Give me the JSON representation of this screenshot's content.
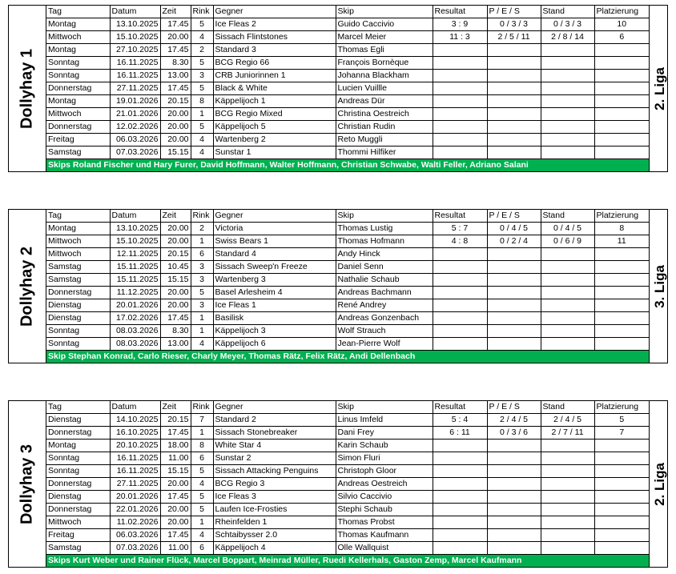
{
  "headers": [
    "Tag",
    "Datum",
    "Zeit",
    "Rink",
    "Gegner",
    "Skip",
    "Resultat",
    "P / E / S",
    "Stand",
    "Platzierung"
  ],
  "teams": [
    {
      "name": "Dollyhay 1",
      "league": "2. Liga",
      "rows": [
        [
          "Montag",
          "13.10.2025",
          "17.45",
          "5",
          "Ice Fleas 2",
          "Guido Caccivio",
          "3 : 9",
          "0 / 3 / 3",
          "0 / 3 / 3",
          "10"
        ],
        [
          "Mittwoch",
          "15.10.2025",
          "20.00",
          "4",
          "Sissach Flintstones",
          "Marcel Meier",
          "11 : 3",
          "2 / 5 / 11",
          "2 / 8 / 14",
          "6"
        ],
        [
          "Montag",
          "27.10.2025",
          "17.45",
          "2",
          "Standard 3",
          "Thomas Egli",
          "",
          "",
          "",
          ""
        ],
        [
          "Sonntag",
          "16.11.2025",
          "8.30",
          "5",
          "BCG Regio 66",
          "François Bornèque",
          "",
          "",
          "",
          ""
        ],
        [
          "Sonntag",
          "16.11.2025",
          "13.00",
          "3",
          "CRB Juniorinnen 1",
          "Johanna Blackham",
          "",
          "",
          "",
          ""
        ],
        [
          "Donnerstag",
          "27.11.2025",
          "17.45",
          "5",
          "Black & White",
          "Lucien Vuillle",
          "",
          "",
          "",
          ""
        ],
        [
          "Montag",
          "19.01.2026",
          "20.15",
          "8",
          "Käppelijoch 1",
          "Andreas Dür",
          "",
          "",
          "",
          ""
        ],
        [
          "Mittwoch",
          "21.01.2026",
          "20.00",
          "1",
          "BCG Regio Mixed",
          "Christina Oestreich",
          "",
          "",
          "",
          ""
        ],
        [
          "Donnerstag",
          "12.02.2026",
          "20.00",
          "5",
          "Käppelijoch 5",
          "Christian Rudin",
          "",
          "",
          "",
          ""
        ],
        [
          "Freitag",
          "06.03.2026",
          "20.00",
          "4",
          "Wartenberg 2",
          "Reto Muggli",
          "",
          "",
          "",
          ""
        ],
        [
          "Samstag",
          "07.03.2026",
          "15.15",
          "4",
          "Sunstar 1",
          "Thommi Hilfiker",
          "",
          "",
          "",
          ""
        ]
      ],
      "skips": "Skips Roland Fischer und Hary Furer, David Hoffmann, Walter Hoffmann, Christian Schwabe, Walti Feller, Adriano Salani"
    },
    {
      "name": "Dollyhay 2",
      "league": "3. Liga",
      "rows": [
        [
          "Montag",
          "13.10.2025",
          "20.00",
          "2",
          "Victoria",
          "Thomas Lustig",
          "5 : 7",
          "0 / 4 / 5",
          "0 / 4 / 5",
          "8"
        ],
        [
          "Mittwoch",
          "15.10.2025",
          "20.00",
          "1",
          "Swiss Bears 1",
          "Thomas Hofmann",
          "4 : 8",
          "0 / 2 / 4",
          "0 / 6 / 9",
          "11"
        ],
        [
          "Mittwoch",
          "12.11.2025",
          "20.15",
          "6",
          "Standard 4",
          "Andy Hinck",
          "",
          "",
          "",
          ""
        ],
        [
          "Samstag",
          "15.11.2025",
          "10.45",
          "3",
          "Sissach Sweep'n Freeze",
          "Daniel Senn",
          "",
          "",
          "",
          ""
        ],
        [
          "Samstag",
          "15.11.2025",
          "15.15",
          "3",
          "Wartenberg 3",
          "Nathalie Schaub",
          "",
          "",
          "",
          ""
        ],
        [
          "Donnerstag",
          "11.12.2025",
          "20.00",
          "5",
          "Basel Arlesheim 4",
          "Andreas Bachmann",
          "",
          "",
          "",
          ""
        ],
        [
          "Dienstag",
          "20.01.2026",
          "20.00",
          "3",
          "Ice Fleas 1",
          "René Andrey",
          "",
          "",
          "",
          ""
        ],
        [
          "Dienstag",
          "17.02.2026",
          "17.45",
          "1",
          "Basilisk",
          "Andreas Gonzenbach",
          "",
          "",
          "",
          ""
        ],
        [
          "Sonntag",
          "08.03.2026",
          "8.30",
          "1",
          "Käppelijoch 3",
          "Wolf Strauch",
          "",
          "",
          "",
          ""
        ],
        [
          "Sonntag",
          "08.03.2026",
          "13.00",
          "4",
          "Käppelijoch 6",
          "Jean-Pierre Wolf",
          "",
          "",
          "",
          ""
        ]
      ],
      "skips": "Skip Stephan Konrad, Carlo Rieser, Charly Meyer, Thomas Rätz, Felix Rätz, Andi Dellenbach"
    },
    {
      "name": "Dollyhay 3",
      "league": "2. Liga",
      "rows": [
        [
          "Dienstag",
          "14.10.2025",
          "20.15",
          "7",
          "Standard 2",
          "Linus Imfeld",
          "5 : 4",
          "2 / 4 / 5",
          "2 / 4 / 5",
          "5"
        ],
        [
          "Donnerstag",
          "16.10.2025",
          "17.45",
          "1",
          "Sissach Stonebreaker",
          "Dani Frey",
          "6 : 11",
          "0 / 3 / 6",
          "2 / 7 / 11",
          "7"
        ],
        [
          "Montag",
          "20.10.2025",
          "18.00",
          "8",
          "White Star 4",
          "Karin Schaub",
          "",
          "",
          "",
          ""
        ],
        [
          "Sonntag",
          "16.11.2025",
          "11.00",
          "6",
          "Sunstar 2",
          "Simon Fluri",
          "",
          "",
          "",
          ""
        ],
        [
          "Sonntag",
          "16.11.2025",
          "15.15",
          "5",
          "Sissach Attacking Penguins",
          "Christoph Gloor",
          "",
          "",
          "",
          ""
        ],
        [
          "Donnerstag",
          "27.11.2025",
          "20.00",
          "4",
          "BCG Regio 3",
          "Andreas Oestreich",
          "",
          "",
          "",
          ""
        ],
        [
          "Dienstag",
          "20.01.2026",
          "17.45",
          "5",
          "Ice Fleas 3",
          "Silvio Caccivio",
          "",
          "",
          "",
          ""
        ],
        [
          "Donnerstag",
          "22.01.2026",
          "20.00",
          "5",
          "Laufen Ice-Frosties",
          "Stephi Schaub",
          "",
          "",
          "",
          ""
        ],
        [
          "Mittwoch",
          "11.02.2026",
          "20.00",
          "1",
          "Rheinfelden 1",
          "Thomas Probst",
          "",
          "",
          "",
          ""
        ],
        [
          "Freitag",
          "06.03.2026",
          "17.45",
          "4",
          "Schtaibysser 2.0",
          "Thomas Kaufmann",
          "",
          "",
          "",
          ""
        ],
        [
          "Samstag",
          "07.03.2026",
          "11.00",
          "6",
          "Käppelijoch 4",
          "Olle Wallquist",
          "",
          "",
          "",
          ""
        ]
      ],
      "skips": "Skips Kurt Weber und Rainer Flück, Marcel Boppart, Meinrad Müller, Ruedi Kellerhals, Gaston Zemp, Marcel Kaufmann"
    }
  ],
  "colors": {
    "banner": "#00b050",
    "banner_text": "#ffffff",
    "grid": "#000000"
  }
}
